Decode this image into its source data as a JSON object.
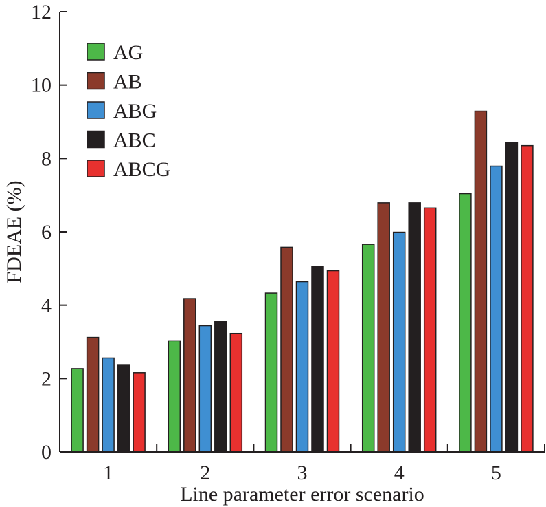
{
  "chart_data": {
    "type": "bar",
    "categories": [
      "1",
      "2",
      "3",
      "4",
      "5"
    ],
    "series": [
      {
        "name": "AG",
        "color": "#4db848",
        "values": [
          2.27,
          3.03,
          4.33,
          5.66,
          7.04
        ]
      },
      {
        "name": "AB",
        "color": "#8b3a2b",
        "values": [
          3.12,
          4.18,
          5.58,
          6.79,
          9.29
        ]
      },
      {
        "name": "ABG",
        "color": "#3f8fd2",
        "values": [
          2.56,
          3.44,
          4.64,
          5.99,
          7.79
        ]
      },
      {
        "name": "ABC",
        "color": "#231f20",
        "values": [
          2.38,
          3.55,
          5.05,
          6.79,
          8.44
        ]
      },
      {
        "name": "ABCG",
        "color": "#e8312f",
        "values": [
          2.16,
          3.23,
          4.94,
          6.65,
          8.35
        ]
      }
    ],
    "xlabel": "Line parameter error scenario",
    "ylabel": "FDEAE (%)",
    "ylim": [
      0,
      12
    ],
    "yticks": [
      "0",
      "2",
      "4",
      "6",
      "8",
      "10",
      "12"
    ],
    "grid": false,
    "legend_position": "top-left"
  }
}
